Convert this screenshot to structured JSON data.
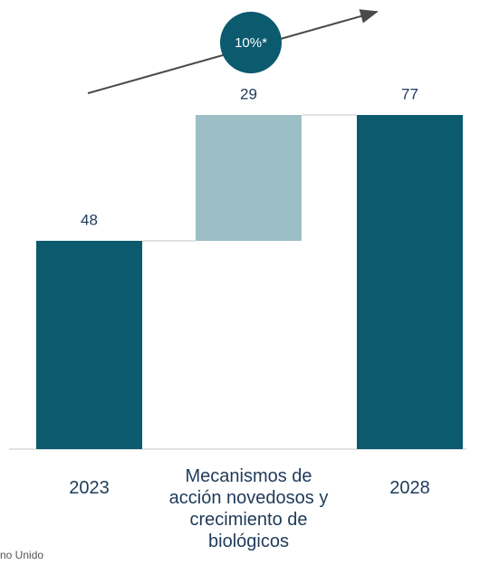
{
  "chart_data": {
    "type": "waterfall",
    "categories": [
      "2023",
      "Mecanismos de acción novedosos y crecimiento de biológicos",
      "2028"
    ],
    "values": [
      48,
      29,
      77
    ],
    "measures": [
      "absolute",
      "relative",
      "total"
    ],
    "colors": [
      "#0b5a6e",
      "#9bbfc5",
      "#0b5a6e"
    ],
    "ylim": [
      0,
      77
    ],
    "annotation": "10%*",
    "footnote": "no Unido"
  }
}
